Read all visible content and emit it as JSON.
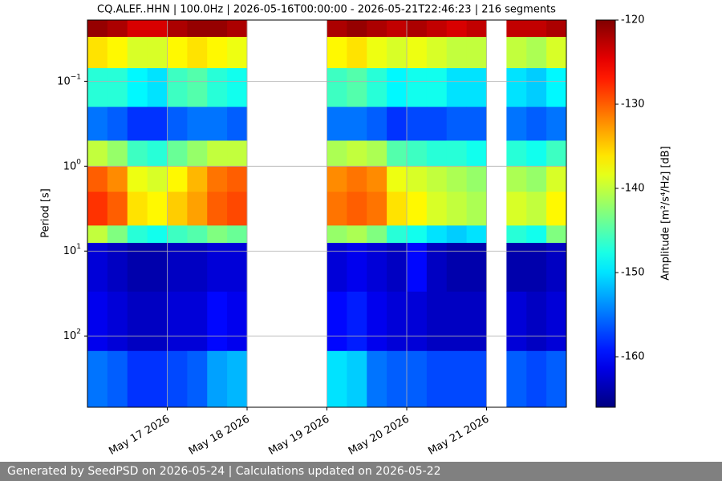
{
  "chart_data": {
    "type": "heatmap",
    "title": "CQ.ALEF..HHN | 100.0Hz | 2026-05-16T00:00:00 - 2026-05-21T22:46:23 | 216 segments",
    "y_label": "Period [s]",
    "colorbar_label": "Amplitude [m²/s⁴/Hz] [dB]",
    "colormap": "jet",
    "y_log": true,
    "y_inverted": true,
    "grid": true,
    "xlim": [
      "2026-05-16",
      "2026-05-22"
    ],
    "xticks": [
      {
        "value": "2026-05-17",
        "label": "May 17 2026"
      },
      {
        "value": "2026-05-18",
        "label": "May 18 2026"
      },
      {
        "value": "2026-05-19",
        "label": "May 19 2026"
      },
      {
        "value": "2026-05-20",
        "label": "May 20 2026"
      },
      {
        "value": "2026-05-21",
        "label": "May 21 2026"
      }
    ],
    "ylim": [
      0.019,
      690
    ],
    "yticks": [
      {
        "value": 0.1,
        "label": "10",
        "exponent": "−1"
      },
      {
        "value": 1,
        "label": "10",
        "exponent": "0"
      },
      {
        "value": 10,
        "label": "10",
        "exponent": "1"
      },
      {
        "value": 100,
        "label": "10",
        "exponent": "2"
      }
    ],
    "clim": [
      -166,
      -120
    ],
    "colorbar_ticks": [
      -120,
      -130,
      -140,
      -150,
      -160
    ],
    "x_bins": [
      "2026-05-16T00:00",
      "2026-05-16T06:00",
      "2026-05-16T12:00",
      "2026-05-16T18:00",
      "2026-05-17T00:00",
      "2026-05-17T06:00",
      "2026-05-17T12:00",
      "2026-05-17T18:00",
      "2026-05-18T00:00",
      "2026-05-18T06:00",
      "2026-05-18T12:00",
      "2026-05-18T18:00",
      "2026-05-19T00:00",
      "2026-05-19T06:00",
      "2026-05-19T12:00",
      "2026-05-19T18:00",
      "2026-05-20T00:00",
      "2026-05-20T06:00",
      "2026-05-20T12:00",
      "2026-05-20T18:00",
      "2026-05-21T00:00",
      "2026-05-21T06:00",
      "2026-05-21T12:00",
      "2026-05-21T18:00",
      "2026-05-22T00:00"
    ],
    "y_bins": [
      0.019,
      0.03,
      0.07,
      0.2,
      0.5,
      1,
      2,
      5,
      8,
      30,
      150,
      690
    ],
    "z": [
      [
        -121,
        -122,
        -124,
        -124,
        -122,
        -121,
        -121,
        -122,
        null,
        null,
        null,
        null,
        -122,
        -121,
        -122,
        -123,
        -122,
        -123,
        -124,
        -123,
        null,
        -123,
        -123,
        -122
      ],
      [
        -136,
        -137,
        -139,
        -139,
        -137,
        -136,
        -137,
        -138,
        null,
        null,
        null,
        null,
        -137,
        -136,
        -138,
        -139,
        -138,
        -139,
        -140,
        -140,
        null,
        -140,
        -141,
        -139
      ],
      [
        -147,
        -147,
        -149,
        -150,
        -146,
        -145,
        -147,
        -148,
        null,
        null,
        null,
        null,
        -146,
        -145,
        -147,
        -149,
        -148,
        -148,
        -150,
        -150,
        null,
        -150,
        -151,
        -149
      ],
      [
        -155,
        -156,
        -158,
        -158,
        -156,
        -155,
        -155,
        -156,
        null,
        null,
        null,
        null,
        -155,
        -155,
        -156,
        -158,
        -157,
        -157,
        -156,
        -156,
        null,
        -155,
        -156,
        -155
      ],
      [
        -140,
        -142,
        -146,
        -147,
        -144,
        -142,
        -140,
        -140,
        null,
        null,
        null,
        null,
        -141,
        -140,
        -141,
        -145,
        -146,
        -147,
        -147,
        -148,
        null,
        -147,
        -148,
        -146
      ],
      [
        -130,
        -132,
        -138,
        -139,
        -137,
        -134,
        -131,
        -130,
        null,
        null,
        null,
        null,
        -132,
        -131,
        -132,
        -138,
        -139,
        -140,
        -141,
        -142,
        null,
        -141,
        -142,
        -139
      ],
      [
        -128,
        -130,
        -136,
        -137,
        -135,
        -133,
        -130,
        -129,
        null,
        null,
        null,
        null,
        -131,
        -130,
        -131,
        -136,
        -137,
        -139,
        -140,
        -141,
        null,
        -139,
        -140,
        -137
      ],
      [
        -140,
        -143,
        -147,
        -148,
        -146,
        -145,
        -143,
        -144,
        null,
        null,
        null,
        null,
        -142,
        -141,
        -143,
        -147,
        -148,
        -150,
        -151,
        -150,
        null,
        -147,
        -148,
        -143
      ],
      [
        -162,
        -163,
        -164,
        -164,
        -163,
        -163,
        -162,
        -162,
        null,
        null,
        null,
        null,
        -162,
        -161,
        -162,
        -163,
        -160,
        -163,
        -164,
        -164,
        null,
        -164,
        -164,
        -163
      ],
      [
        -161,
        -162,
        -163,
        -163,
        -162,
        -162,
        -160,
        -161,
        null,
        null,
        null,
        null,
        -160,
        -159,
        -161,
        -162,
        -162,
        -163,
        -163,
        -163,
        null,
        -162,
        -163,
        -162
      ],
      [
        -155,
        -156,
        -158,
        -158,
        -157,
        -156,
        -153,
        -152,
        null,
        null,
        null,
        null,
        -150,
        -151,
        -155,
        -156,
        -156,
        -157,
        -157,
        -157,
        null,
        -156,
        -157,
        -156
      ]
    ]
  },
  "footer": {
    "text": "Generated by SeedPSD on 2026-05-24 | Calculations updated on 2026-05-22"
  }
}
